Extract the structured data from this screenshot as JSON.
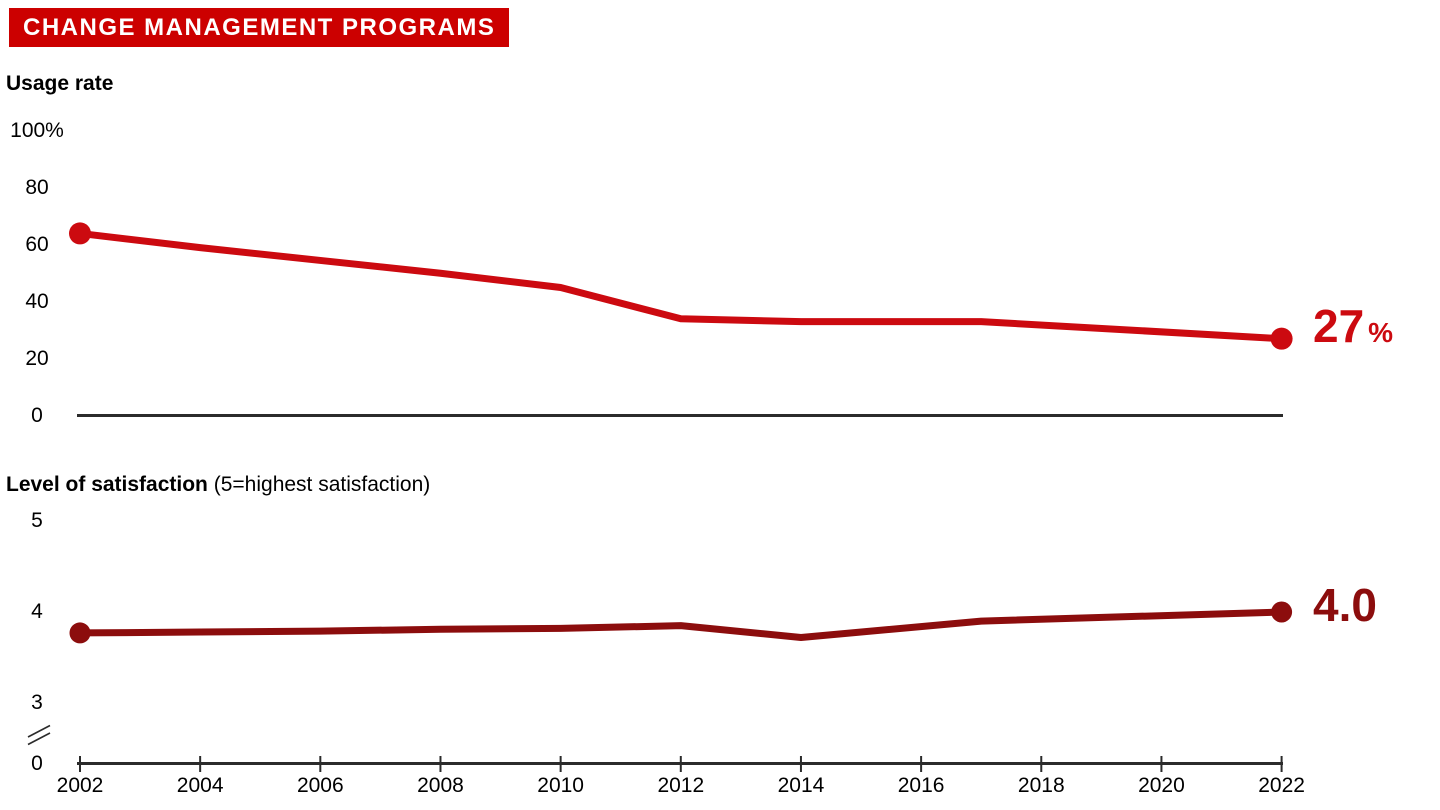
{
  "header": {
    "title": "CHANGE MANAGEMENT PROGRAMS"
  },
  "colors": {
    "banner": "#cc0000",
    "banner_text": "#ffffff",
    "usage_line": "#cc0a10",
    "satisfaction_line": "#8c0d0d",
    "axis": "#2b2b2b",
    "text": "#000000"
  },
  "usage": {
    "label": "Usage rate",
    "end_value": "27",
    "end_unit": "%",
    "yticks": [
      {
        "label": "100%",
        "v": 100
      },
      {
        "label": "80",
        "v": 80
      },
      {
        "label": "60",
        "v": 60
      },
      {
        "label": "40",
        "v": 40
      },
      {
        "label": "20",
        "v": 20
      },
      {
        "label": "0",
        "v": 0
      }
    ]
  },
  "satisfaction": {
    "label": "Level of satisfaction",
    "note": "(5=highest satisfaction)",
    "end_value": "4.0",
    "yticks": [
      {
        "label": "5",
        "v": 5
      },
      {
        "label": "4",
        "v": 4
      },
      {
        "label": "3",
        "v": 3
      },
      {
        "label": "0",
        "v": 0
      }
    ]
  },
  "x_axis": {
    "ticks": [
      "2002",
      "2004",
      "2006",
      "2008",
      "2010",
      "2012",
      "2014",
      "2016",
      "2018",
      "2020",
      "2022"
    ]
  },
  "chart_data": [
    {
      "type": "line",
      "name": "Usage rate",
      "title": "CHANGE MANAGEMENT PROGRAMS — Usage rate",
      "x": [
        2002,
        2004,
        2006,
        2008,
        2010,
        2012,
        2014,
        2017,
        2022
      ],
      "values": [
        64,
        59,
        54.5,
        50,
        45,
        34,
        33,
        33,
        27
      ],
      "unit": "%",
      "ylim": [
        0,
        100
      ],
      "yticks": [
        0,
        20,
        40,
        60,
        80,
        100
      ],
      "xlim": [
        2002,
        2022
      ],
      "xtick_step": 2,
      "grid": false,
      "end_label": "27%",
      "markers": "first and last point only",
      "color": "#cc0a10"
    },
    {
      "type": "line",
      "name": "Level of satisfaction",
      "title": "CHANGE MANAGEMENT PROGRAMS — Level of satisfaction (5=highest satisfaction)",
      "x": [
        2002,
        2004,
        2006,
        2008,
        2010,
        2012,
        2014,
        2017,
        2022
      ],
      "values": [
        3.77,
        3.78,
        3.79,
        3.81,
        3.82,
        3.85,
        3.72,
        3.9,
        4.0
      ],
      "ylim": [
        3,
        5
      ],
      "yticks": [
        0,
        3,
        4,
        5
      ],
      "axis_break_between": [
        0,
        3
      ],
      "xlim": [
        2002,
        2022
      ],
      "xtick_step": 2,
      "grid": false,
      "end_label": "4.0",
      "markers": "first and last point only",
      "color": "#8c0d0d"
    }
  ]
}
